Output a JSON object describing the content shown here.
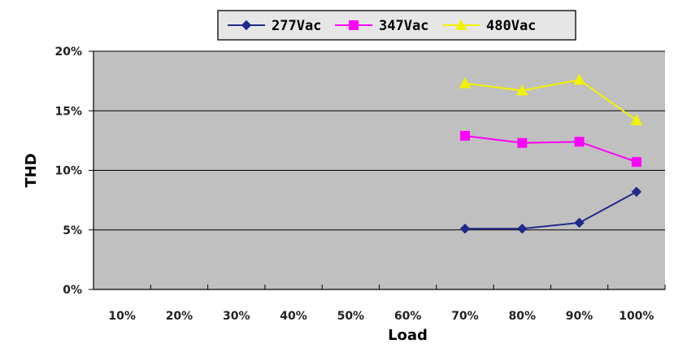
{
  "chart_data": {
    "type": "line",
    "categories": [
      "10%",
      "20%",
      "30%",
      "40%",
      "50%",
      "60%",
      "70%",
      "80%",
      "90%",
      "100%"
    ],
    "xlabel": "Load",
    "ylabel": "THD",
    "ylim": [
      0,
      20
    ],
    "yticks": [
      "0%",
      "5%",
      "10%",
      "15%",
      "20%"
    ],
    "grid": true,
    "legend_position": "top",
    "plot_background": "#c0c0c0",
    "series": [
      {
        "name": "277Vac",
        "color": "#1f2a8a",
        "marker": "diamond",
        "values": [
          null,
          null,
          null,
          null,
          null,
          null,
          5.1,
          5.1,
          5.6,
          8.2
        ]
      },
      {
        "name": "347Vac",
        "color": "#ff00ff",
        "marker": "square",
        "values": [
          null,
          null,
          null,
          null,
          null,
          null,
          12.9,
          12.3,
          12.4,
          10.7
        ]
      },
      {
        "name": "480Vac",
        "color": "#f2f200",
        "marker": "triangle",
        "values": [
          null,
          null,
          null,
          null,
          null,
          null,
          17.3,
          16.7,
          17.6,
          14.2
        ]
      }
    ]
  }
}
